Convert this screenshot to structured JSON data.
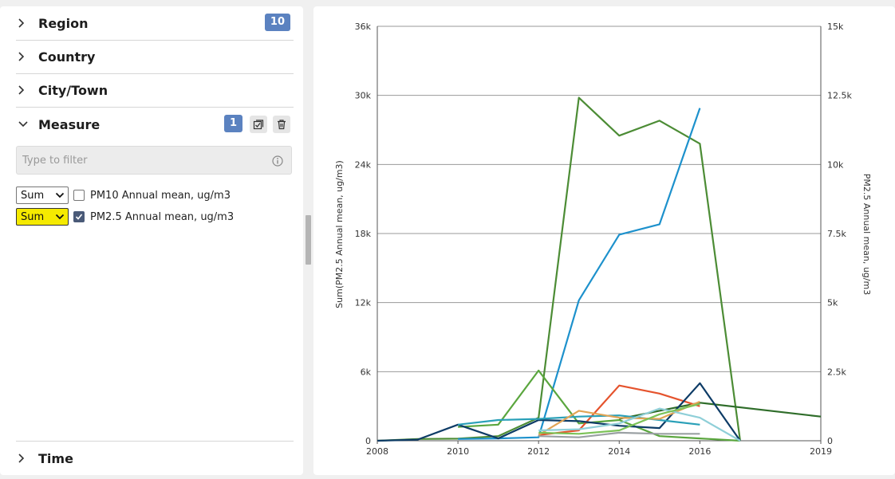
{
  "facets": {
    "region": {
      "label": "Region",
      "count": "10"
    },
    "country": {
      "label": "Country"
    },
    "city": {
      "label": "City/Town"
    },
    "measure": {
      "label": "Measure",
      "count": "1"
    },
    "time": {
      "label": "Time"
    }
  },
  "filter": {
    "placeholder": "Type to filter"
  },
  "measures": [
    {
      "agg": "Sum",
      "label": "PM10 Annual mean, ug/m3",
      "checked": false,
      "highlighted": false
    },
    {
      "agg": "Sum",
      "label": "PM2.5 Annual mean, ug/m3",
      "checked": true,
      "highlighted": true
    }
  ],
  "icons": {
    "chevron": "chevron-right-icon",
    "check_all": "check-all-icon",
    "trash": "trash-icon",
    "info": "info-icon",
    "dropdown": "chevron-down-icon"
  },
  "colors": {
    "badge": "#5b82c0",
    "highlight": "#f5ea00",
    "checkbox_checked": "#4a5a78"
  },
  "chart_data": {
    "type": "line",
    "ylabel": "Sum(PM2.5 Annual mean, ug/m3)",
    "y2label": "PM2.5 Annual mean, ug/m3",
    "xlim": [
      2008,
      2019
    ],
    "ylim": [
      0,
      36000
    ],
    "y2lim": [
      0,
      15000
    ],
    "x_ticks": [
      "2008",
      "2010",
      "2012",
      "2014",
      "2016",
      "2019"
    ],
    "y_ticks": [
      "0",
      "6k",
      "12k",
      "18k",
      "24k",
      "30k",
      "36k"
    ],
    "y2_ticks": [
      "0",
      "2.5k",
      "5k",
      "7.5k",
      "10k",
      "12.5k",
      "15k"
    ],
    "grid": "horizontal",
    "series": [
      {
        "color": "#4c8c35",
        "points": [
          [
            2008,
            0
          ],
          [
            2009,
            150
          ],
          [
            2010,
            180
          ],
          [
            2011,
            400
          ],
          [
            2012,
            2000
          ],
          [
            2013,
            29800
          ],
          [
            2014,
            26500
          ],
          [
            2015,
            27800
          ],
          [
            2016,
            25800
          ],
          [
            2017,
            0
          ]
        ]
      },
      {
        "color": "#1d91cc",
        "points": [
          [
            2010,
            150
          ],
          [
            2011,
            200
          ],
          [
            2012,
            300
          ],
          [
            2013,
            12200
          ],
          [
            2014,
            17900
          ],
          [
            2015,
            18800
          ],
          [
            2016,
            28900
          ]
        ]
      },
      {
        "color": "#5aa63e",
        "points": [
          [
            2010,
            1200
          ],
          [
            2011,
            1400
          ],
          [
            2012,
            6100
          ],
          [
            2013,
            1500
          ],
          [
            2014,
            1800
          ],
          [
            2015,
            400
          ],
          [
            2016,
            200
          ],
          [
            2017,
            0
          ]
        ]
      },
      {
        "color": "#2f6d2a",
        "points": [
          [
            2014,
            1900
          ],
          [
            2015,
            2600
          ],
          [
            2016,
            3300
          ],
          [
            2019,
            2100
          ]
        ]
      },
      {
        "color": "#e5532d",
        "points": [
          [
            2012,
            500
          ],
          [
            2013,
            900
          ],
          [
            2014,
            4800
          ],
          [
            2015,
            4100
          ],
          [
            2016,
            3000
          ]
        ]
      },
      {
        "color": "#0d3b66",
        "points": [
          [
            2008,
            0
          ],
          [
            2009,
            100
          ],
          [
            2010,
            1400
          ],
          [
            2011,
            200
          ],
          [
            2012,
            1800
          ],
          [
            2013,
            1700
          ],
          [
            2014,
            1300
          ],
          [
            2015,
            1100
          ],
          [
            2016,
            5000
          ],
          [
            2017,
            0
          ]
        ]
      },
      {
        "color": "#2aa0b8",
        "points": [
          [
            2010,
            1400
          ],
          [
            2011,
            1800
          ],
          [
            2012,
            1900
          ],
          [
            2013,
            2100
          ],
          [
            2014,
            2200
          ],
          [
            2015,
            1800
          ],
          [
            2016,
            1400
          ]
        ]
      },
      {
        "color": "#e1a455",
        "points": [
          [
            2012,
            500
          ],
          [
            2013,
            2600
          ],
          [
            2014,
            2000
          ],
          [
            2015,
            1900
          ],
          [
            2016,
            3400
          ]
        ]
      },
      {
        "color": "#8fcfd8",
        "points": [
          [
            2012,
            900
          ],
          [
            2013,
            1000
          ],
          [
            2014,
            1500
          ],
          [
            2015,
            2800
          ],
          [
            2016,
            2000
          ],
          [
            2017,
            0
          ]
        ]
      },
      {
        "color": "#7bc257",
        "points": [
          [
            2012,
            700
          ],
          [
            2013,
            600
          ],
          [
            2014,
            900
          ],
          [
            2015,
            2300
          ],
          [
            2016,
            3200
          ]
        ]
      },
      {
        "color": "#9aa0a3",
        "points": [
          [
            2012,
            400
          ],
          [
            2013,
            300
          ],
          [
            2014,
            700
          ],
          [
            2015,
            600
          ],
          [
            2016,
            600
          ]
        ]
      }
    ]
  }
}
